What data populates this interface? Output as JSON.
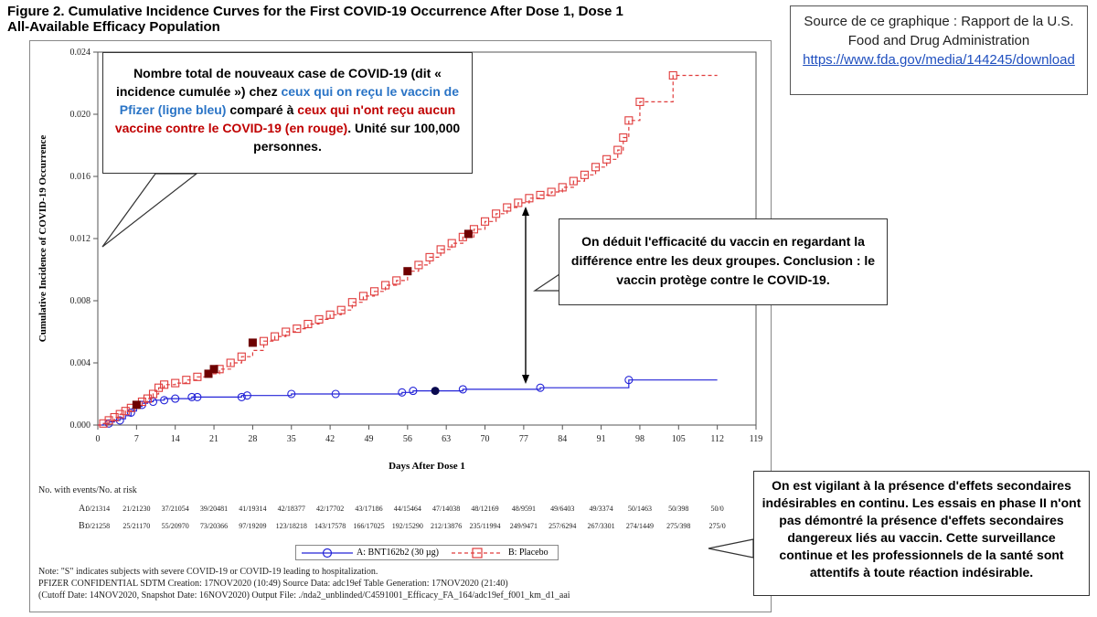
{
  "figure": {
    "title_line1": "Figure 2. Cumulative Incidence Curves for the First COVID-19 Occurrence After Dose 1, Dose 1",
    "title_line2": "All-Available Efficacy Population"
  },
  "colors": {
    "vaccine": "#2424d8",
    "placebo": "#e03c3c",
    "callout_blue": "#2a74c6",
    "callout_red": "#c00000"
  },
  "chart_data": {
    "type": "line",
    "xlabel": "Days After Dose 1",
    "ylabel": "Cumulative Incidence of COVID-19 Occurrence",
    "xlim": [
      0,
      119
    ],
    "ylim": [
      0,
      0.024
    ],
    "x_ticks": [
      "0",
      "7",
      "14",
      "21",
      "28",
      "35",
      "42",
      "49",
      "56",
      "63",
      "70",
      "77",
      "84",
      "91",
      "98",
      "105",
      "112",
      "119"
    ],
    "y_ticks": [
      "0.000",
      "0.004",
      "0.008",
      "0.012",
      "0.016",
      "0.020",
      "0.024"
    ],
    "series": [
      {
        "name": "A: BNT162b2 (30 µg)",
        "style": "step-solid",
        "marker": "circle",
        "points": [
          [
            0,
            0
          ],
          [
            1,
            0.0001
          ],
          [
            2,
            0.0002
          ],
          [
            3,
            0.0003
          ],
          [
            4,
            0.0004
          ],
          [
            5,
            0.0006
          ],
          [
            6,
            0.0009
          ],
          [
            7,
            0.0012
          ],
          [
            8,
            0.0014
          ],
          [
            9,
            0.0015
          ],
          [
            10,
            0.0016
          ],
          [
            12,
            0.0017
          ],
          [
            14,
            0.0017
          ],
          [
            17,
            0.0018
          ],
          [
            18,
            0.0018
          ],
          [
            26,
            0.0019
          ],
          [
            27,
            0.0019
          ],
          [
            35,
            0.002
          ],
          [
            43,
            0.002
          ],
          [
            55,
            0.0021
          ],
          [
            57,
            0.0022
          ],
          [
            61,
            0.0022
          ],
          [
            66,
            0.0023
          ],
          [
            80,
            0.0024
          ],
          [
            96,
            0.0029
          ],
          [
            112,
            0.0029
          ]
        ],
        "markers": [
          [
            2,
            0.0001
          ],
          [
            4,
            0.0003
          ],
          [
            6,
            0.0008
          ],
          [
            8,
            0.0013
          ],
          [
            10,
            0.0015
          ],
          [
            12,
            0.0016
          ],
          [
            14,
            0.0017
          ],
          [
            17,
            0.0018
          ],
          [
            18,
            0.0018
          ],
          [
            26,
            0.0018
          ],
          [
            27,
            0.0019
          ],
          [
            35,
            0.002
          ],
          [
            43,
            0.002
          ],
          [
            55,
            0.0021
          ],
          [
            57,
            0.0022
          ],
          [
            66,
            0.0023
          ],
          [
            80,
            0.0024
          ],
          [
            96,
            0.0029
          ]
        ],
        "severe_markers": [
          [
            61,
            0.0022
          ]
        ]
      },
      {
        "name": "B: Placebo",
        "style": "step-dashed",
        "marker": "square",
        "points": [
          [
            0,
            0
          ],
          [
            1,
            0.0001
          ],
          [
            2,
            0.0003
          ],
          [
            3,
            0.0005
          ],
          [
            4,
            0.0007
          ],
          [
            5,
            0.0009
          ],
          [
            6,
            0.0011
          ],
          [
            7,
            0.0013
          ],
          [
            8,
            0.0015
          ],
          [
            9,
            0.0017
          ],
          [
            10,
            0.002
          ],
          [
            11,
            0.0024
          ],
          [
            12,
            0.0026
          ],
          [
            14,
            0.0027
          ],
          [
            16,
            0.0029
          ],
          [
            18,
            0.0031
          ],
          [
            20,
            0.0033
          ],
          [
            22,
            0.0036
          ],
          [
            24,
            0.004
          ],
          [
            26,
            0.0044
          ],
          [
            28,
            0.0048
          ],
          [
            30,
            0.0054
          ],
          [
            32,
            0.0057
          ],
          [
            34,
            0.006
          ],
          [
            36,
            0.0062
          ],
          [
            38,
            0.0065
          ],
          [
            40,
            0.0068
          ],
          [
            42,
            0.0071
          ],
          [
            44,
            0.0074
          ],
          [
            46,
            0.0079
          ],
          [
            48,
            0.0083
          ],
          [
            50,
            0.0086
          ],
          [
            52,
            0.009
          ],
          [
            54,
            0.0093
          ],
          [
            56,
            0.0099
          ],
          [
            58,
            0.0103
          ],
          [
            60,
            0.0108
          ],
          [
            62,
            0.0113
          ],
          [
            64,
            0.0117
          ],
          [
            66,
            0.0121
          ],
          [
            68,
            0.0126
          ],
          [
            70,
            0.0131
          ],
          [
            72,
            0.0136
          ],
          [
            74,
            0.014
          ],
          [
            76,
            0.0143
          ],
          [
            78,
            0.0146
          ],
          [
            80,
            0.0148
          ],
          [
            82,
            0.015
          ],
          [
            84,
            0.0153
          ],
          [
            86,
            0.0157
          ],
          [
            88,
            0.0161
          ],
          [
            90,
            0.0166
          ],
          [
            92,
            0.0171
          ],
          [
            94,
            0.0177
          ],
          [
            95,
            0.0185
          ],
          [
            96,
            0.0196
          ],
          [
            98,
            0.0208
          ],
          [
            103,
            0.0208
          ],
          [
            104,
            0.0225
          ],
          [
            112,
            0.0225
          ]
        ],
        "markers": [
          [
            1,
            0.0001
          ],
          [
            2,
            0.0003
          ],
          [
            3,
            0.0005
          ],
          [
            4,
            0.0007
          ],
          [
            5,
            0.0009
          ],
          [
            6,
            0.0011
          ],
          [
            8,
            0.0015
          ],
          [
            9,
            0.0017
          ],
          [
            10,
            0.002
          ],
          [
            11,
            0.0024
          ],
          [
            12,
            0.0026
          ],
          [
            14,
            0.0027
          ],
          [
            16,
            0.0029
          ],
          [
            18,
            0.0031
          ],
          [
            22,
            0.0036
          ],
          [
            24,
            0.004
          ],
          [
            26,
            0.0044
          ],
          [
            30,
            0.0054
          ],
          [
            32,
            0.0057
          ],
          [
            34,
            0.006
          ],
          [
            36,
            0.0062
          ],
          [
            38,
            0.0065
          ],
          [
            40,
            0.0068
          ],
          [
            42,
            0.0071
          ],
          [
            44,
            0.0074
          ],
          [
            46,
            0.0079
          ],
          [
            48,
            0.0083
          ],
          [
            50,
            0.0086
          ],
          [
            52,
            0.009
          ],
          [
            54,
            0.0093
          ],
          [
            58,
            0.0103
          ],
          [
            60,
            0.0108
          ],
          [
            62,
            0.0113
          ],
          [
            64,
            0.0117
          ],
          [
            66,
            0.0121
          ],
          [
            68,
            0.0126
          ],
          [
            70,
            0.0131
          ],
          [
            72,
            0.0136
          ],
          [
            74,
            0.014
          ],
          [
            76,
            0.0143
          ],
          [
            78,
            0.0146
          ],
          [
            80,
            0.0148
          ],
          [
            82,
            0.015
          ],
          [
            84,
            0.0153
          ],
          [
            86,
            0.0157
          ],
          [
            88,
            0.0161
          ],
          [
            90,
            0.0166
          ],
          [
            92,
            0.0171
          ],
          [
            94,
            0.0177
          ],
          [
            95,
            0.0185
          ],
          [
            96,
            0.0196
          ],
          [
            98,
            0.0208
          ],
          [
            104,
            0.0225
          ]
        ],
        "severe_markers": [
          [
            7,
            0.0013
          ],
          [
            20,
            0.0033
          ],
          [
            21,
            0.0036
          ],
          [
            28,
            0.0053
          ],
          [
            56,
            0.0099
          ],
          [
            67,
            0.0123
          ]
        ]
      }
    ]
  },
  "risk_table": {
    "header": "No. with events/No. at risk",
    "rows": [
      {
        "label": "A:",
        "values": [
          "0/21314",
          "21/21230",
          "37/21054",
          "39/20481",
          "41/19314",
          "42/18377",
          "42/17702",
          "43/17186",
          "44/15464",
          "47/14038",
          "48/12169",
          "48/9591",
          "49/6403",
          "49/3374",
          "50/1463",
          "50/398",
          "50/0"
        ]
      },
      {
        "label": "B:",
        "values": [
          "0/21258",
          "25/21170",
          "55/20970",
          "73/20366",
          "97/19209",
          "123/18218",
          "143/17578",
          "166/17025",
          "192/15290",
          "212/13876",
          "235/11994",
          "249/9471",
          "257/6294",
          "267/3301",
          "274/1449",
          "275/398",
          "275/0"
        ]
      }
    ]
  },
  "legend": {
    "a": "A: BNT162b2 (30 µg)",
    "b": "B: Placebo"
  },
  "notes": {
    "line1": "Note: \"S\" indicates subjects with severe COVID-19 or COVID-19 leading to hospitalization.",
    "line2": "PFIZER CONFIDENTIAL  SDTM Creation: 17NOV2020 (10:49)  Source Data: adc19ef  Table Generation: 17NOV2020 (21:40)",
    "line3": "(Cutoff Date: 14NOV2020, Snapshot Date: 16NOV2020) Output File:  ./nda2_unblinded/C4591001_Efficacy_FA_164/adc19ef_f001_km_d1_aai"
  },
  "callouts": {
    "top": {
      "part1": "Nombre total de nouveaux case de COVID-19 (dit « incidence cumulée ») chez ",
      "part2_blue": "ceux qui on reçu le vaccin de Pfizer (ligne bleu)",
      "part3": " comparé à ",
      "part4_red": "ceux qui n'ont reçu aucun vaccine contre le COVID-19 (en rouge)",
      "part5": ". Unité sur 100,000 personnes."
    },
    "middle": "On déduit l'efficacité du vaccin en regardant la différence entre les deux groupes. Conclusion : le vaccin protège contre le COVID-19.",
    "bottom_right": "On est vigilant à la présence d'effets secondaires indésirables en continu. Les essais en phase II n'ont pas démontré la présence d'effets secondaires dangereux liés au vaccin. Cette surveillance continue et les professionnels de la santé sont attentifs à toute réaction indésirable."
  },
  "source": {
    "text": "Source de ce graphique : Rapport de la U.S. Food and Drug Administration",
    "link": "https://www.fda.gov/media/144245/download"
  }
}
